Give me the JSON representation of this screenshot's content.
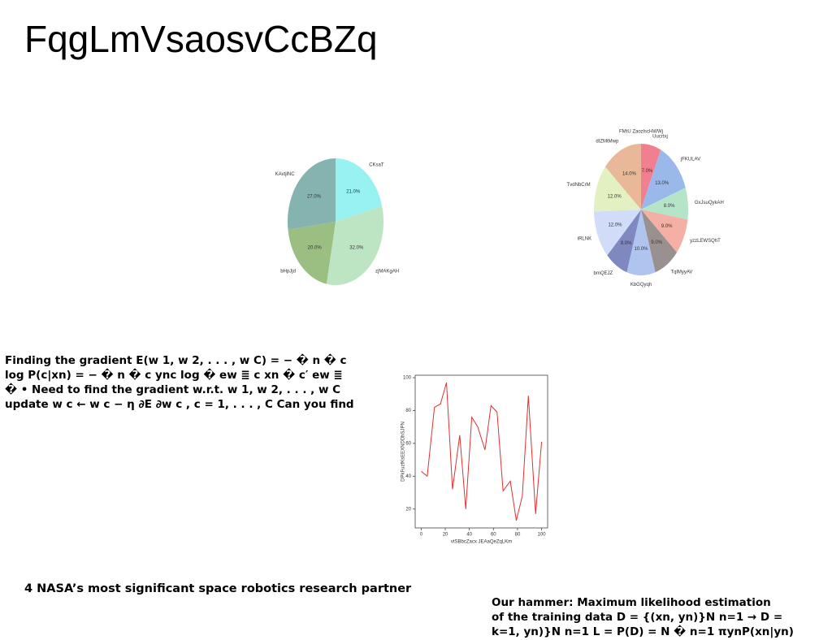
{
  "title": "FqgLmVsaosvCcBZq",
  "paragraphs": [
    {
      "lines": [
        "Finding the gradient E(w 1, w 2, . . . , w C) = − � n � c",
        "log P(c|xn) = − � n � c ync log � ew ≣ c xn � c′ ew ≣",
        "� • Need to find the gradient w.r.t. w 1, w 2, . . . , w C",
        "update w c ← w c − η ∂E ∂w c , c = 1, . . . , C Can you find"
      ]
    },
    {
      "lines": [
        "4 NASA’s most significant space robotics research partner"
      ]
    },
    {
      "lines": [
        "Our hammer: Maximum likelihood estimation",
        "of the training data D = {(xn, yn)}N n=1 → D =",
        "k=1, yn)}N n=1 L = P(D) = N � n=1 πynP(xn|yn)"
      ]
    }
  ],
  "chart_data": [
    {
      "type": "pie",
      "categories": [
        "CKsaT",
        "zjMAKgAH",
        "bHpJjd",
        "KAvtjlNC"
      ],
      "values": [
        21,
        32,
        20,
        27
      ],
      "value_labels": [
        "21.0%",
        "32.0%",
        "20.0%",
        "27.0%"
      ],
      "colors": [
        "#98f2f2",
        "#bde5c4",
        "#9bbf82",
        "#85b3b0"
      ]
    },
    {
      "type": "pie",
      "title": "FMtU ZaozlscHWWj",
      "categories": [
        "Uucrtxj",
        "jFKULAV",
        "GxJsuQykAH",
        "yzzLEWSQhT",
        "TqlMyyAV",
        "KbGQyqh",
        "bmQEJZ",
        "iRLNK",
        "TvdNbCrM",
        "dIZMtMwp"
      ],
      "values": [
        7,
        13,
        8,
        9,
        9,
        10,
        8,
        12,
        12,
        14
      ],
      "value_labels": [
        "7.0%",
        "13.0%",
        "8.0%",
        "9.0%",
        "9.0%",
        "10.0%",
        "8.0%",
        "12.0%",
        "12.0%",
        "14.0%"
      ],
      "colors": [
        "#f08090",
        "#9bb8ea",
        "#b5e5c8",
        "#f5b0a5",
        "#999090",
        "#b0c4f0",
        "#8088c0",
        "#d0dcf8",
        "#e2f0c2",
        "#e8b898"
      ]
    },
    {
      "type": "line",
      "x_label": "vtSBbcZacx JEAaQeZqLKm",
      "y_label": "DPkFuzfKsEEXNDDhSJPN",
      "x": [
        0,
        5,
        11,
        16,
        21,
        26,
        32,
        37,
        42,
        47,
        53,
        58,
        63,
        68,
        74,
        79,
        84,
        89,
        95,
        100
      ],
      "series": [
        {
          "color": "#e03030",
          "values": [
            43,
            40,
            82,
            84,
            97,
            32,
            65,
            20,
            76,
            70,
            56,
            83,
            79,
            31,
            37,
            13,
            28,
            89,
            17,
            61
          ]
        }
      ],
      "xlim": [
        -5,
        105
      ],
      "ylim": [
        8.5,
        101.5
      ],
      "xticks": [
        0,
        20,
        40,
        60,
        80,
        100
      ],
      "yticks": [
        20,
        40,
        60,
        80,
        100
      ]
    }
  ]
}
